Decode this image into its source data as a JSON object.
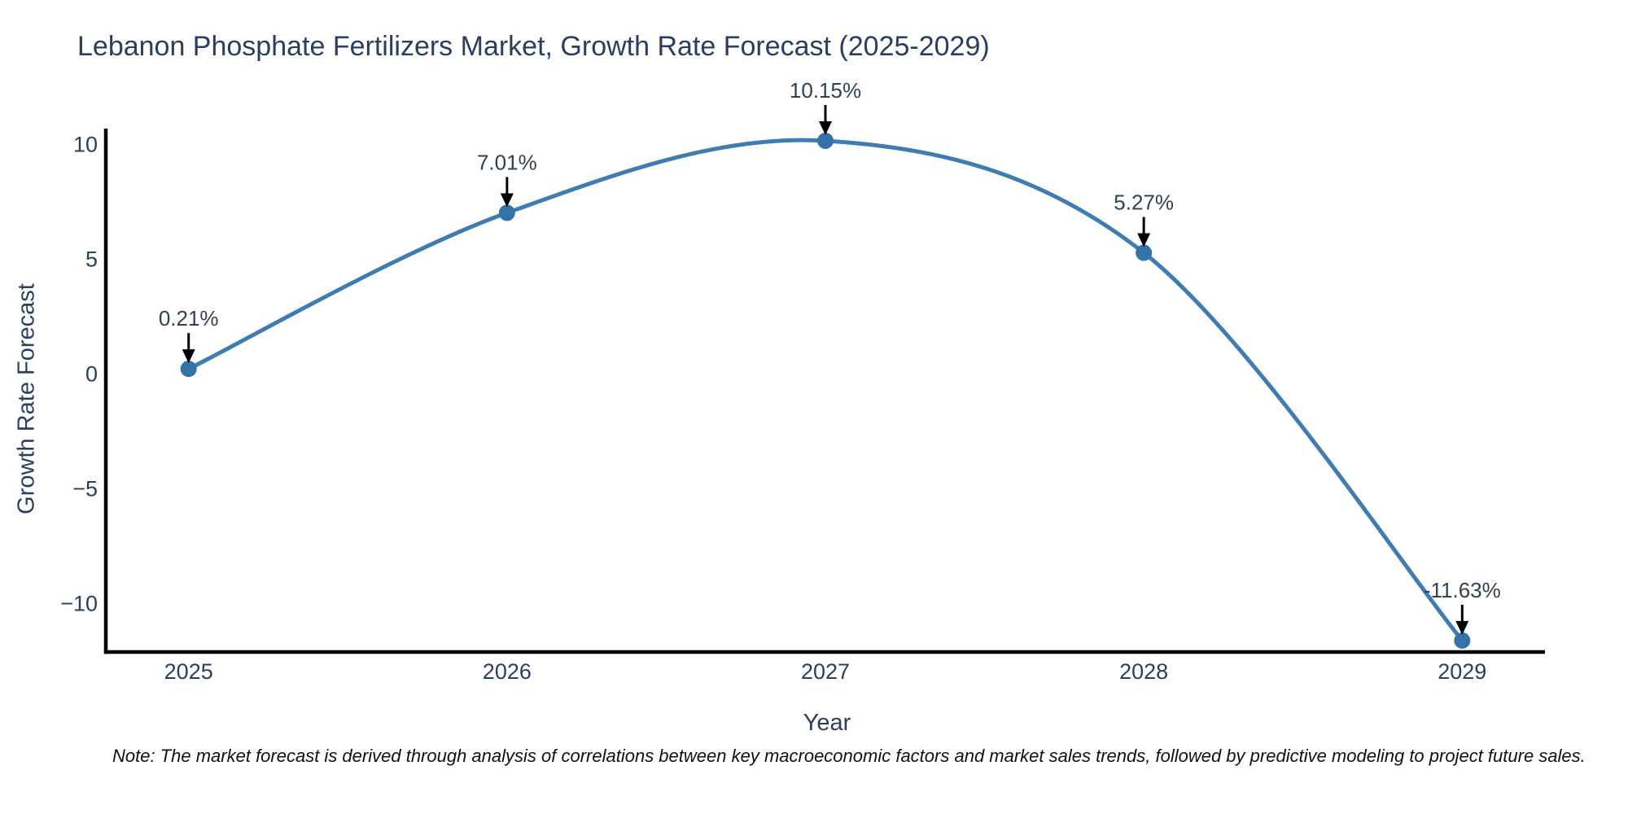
{
  "title": "Lebanon Phosphate Fertilizers Market, Growth Rate Forecast (2025-2029)",
  "note": "Note: The market forecast is derived through analysis of correlations between key macroeconomic factors and market sales trends, followed by predictive modeling to project future sales.",
  "chart_data": {
    "type": "line",
    "title": "Lebanon Phosphate Fertilizers Market, Growth Rate Forecast (2025-2029)",
    "xlabel": "Year",
    "ylabel": "Growth Rate Forecast",
    "x": [
      2025,
      2026,
      2027,
      2028,
      2029
    ],
    "series": [
      {
        "name": "Growth Rate Forecast",
        "values": [
          0.21,
          7.01,
          10.15,
          5.27,
          -11.63
        ]
      }
    ],
    "point_labels": [
      "0.21%",
      "7.01%",
      "10.15%",
      "5.27%",
      "-11.63%"
    ],
    "xticks": [
      "2025",
      "2026",
      "2027",
      "2028",
      "2029"
    ],
    "yticks": [
      10,
      5,
      0,
      -5,
      -10
    ],
    "ytick_labels": [
      "10",
      "5",
      "0",
      "−5",
      "−10"
    ],
    "xlim": [
      2024.74,
      2029.26
    ],
    "ylim": [
      -12.13,
      10.61
    ],
    "grid": false,
    "legend_position": "none",
    "line_shape": "spline",
    "colors": {
      "line": "#3e7cb2",
      "marker": "#3572a8",
      "arrow": "#000000",
      "axis": "#000000",
      "tick_text": "#2a3f5f",
      "annotation_text": "#33404f",
      "title_text": "#2a3f5f"
    }
  }
}
